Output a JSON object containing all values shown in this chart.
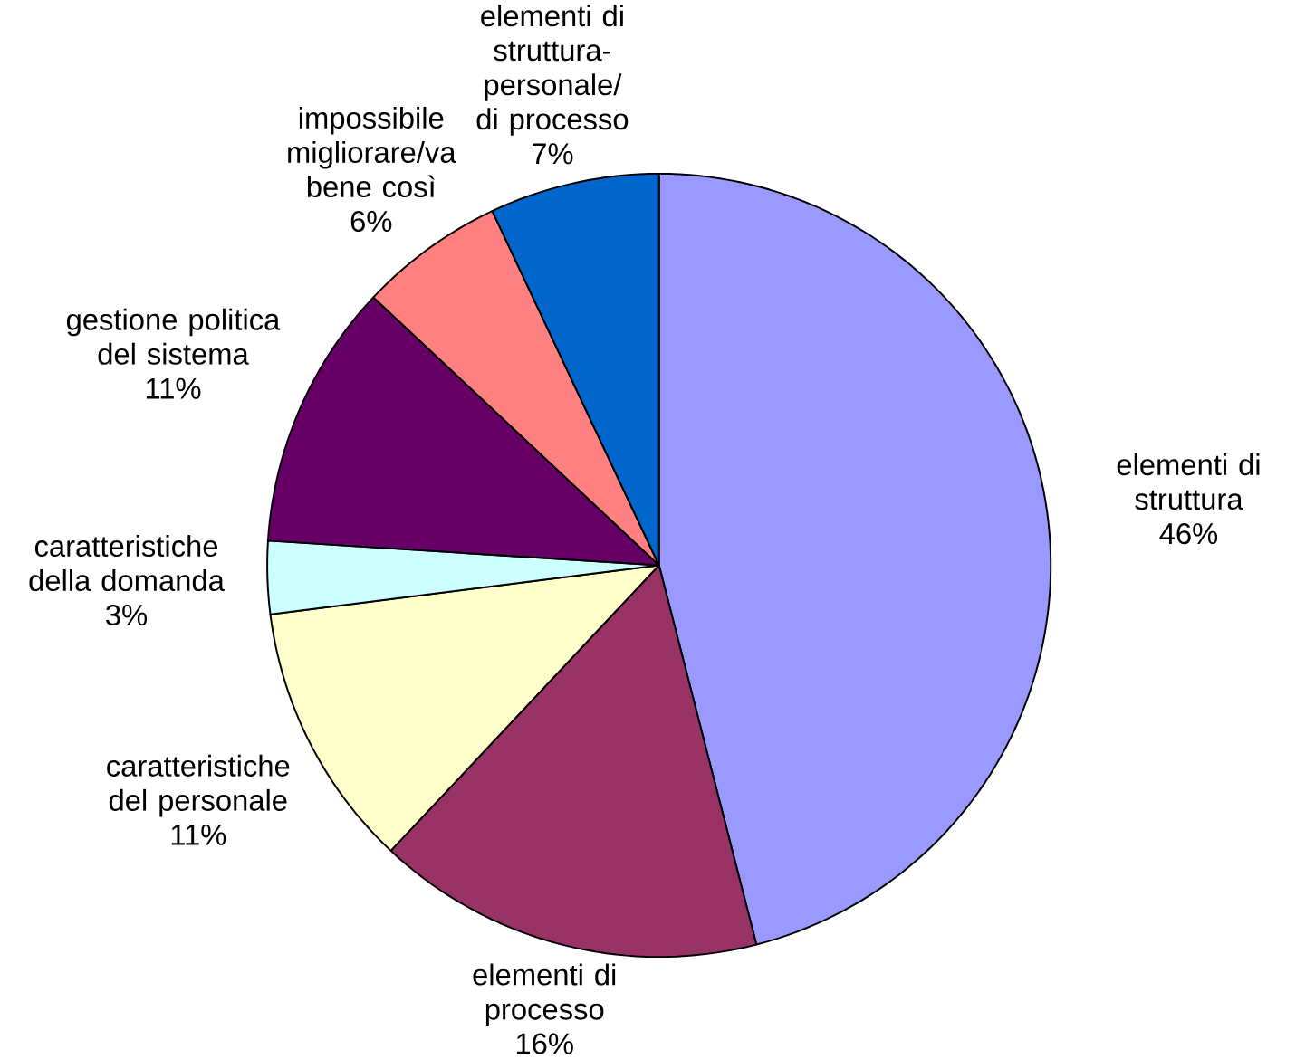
{
  "chart_data": {
    "type": "pie",
    "categories": [
      "elementi di struttura",
      "elementi di processo",
      "caratteristiche del personale",
      "caratteristiche della domanda",
      "gestione politica del sistema",
      "impossibile migliorare/va bene così",
      "elementi di struttura-personale/ di processo"
    ],
    "values": [
      46,
      16,
      11,
      3,
      11,
      6,
      7
    ],
    "value_labels": [
      "46%",
      "16%",
      "11%",
      "3%",
      "11%",
      "6%",
      "7%"
    ],
    "colors": [
      "#9999ff",
      "#993366",
      "#ffffcc",
      "#ccffff",
      "#660066",
      "#ff8080",
      "#0066cc"
    ]
  }
}
